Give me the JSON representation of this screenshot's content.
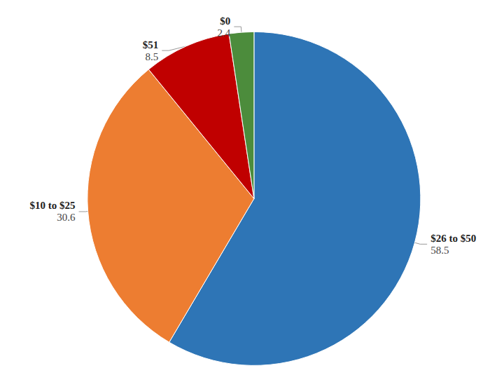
{
  "chart_data": {
    "type": "pie",
    "categories": [
      "$26 to $50",
      "$10 to $25",
      "$51",
      "$0"
    ],
    "values": [
      58.5,
      30.6,
      8.5,
      2.4
    ],
    "colors": [
      "#2e75b6",
      "#ed7d31",
      "#c00000",
      "#4c8c3c"
    ],
    "data_labels": true
  }
}
